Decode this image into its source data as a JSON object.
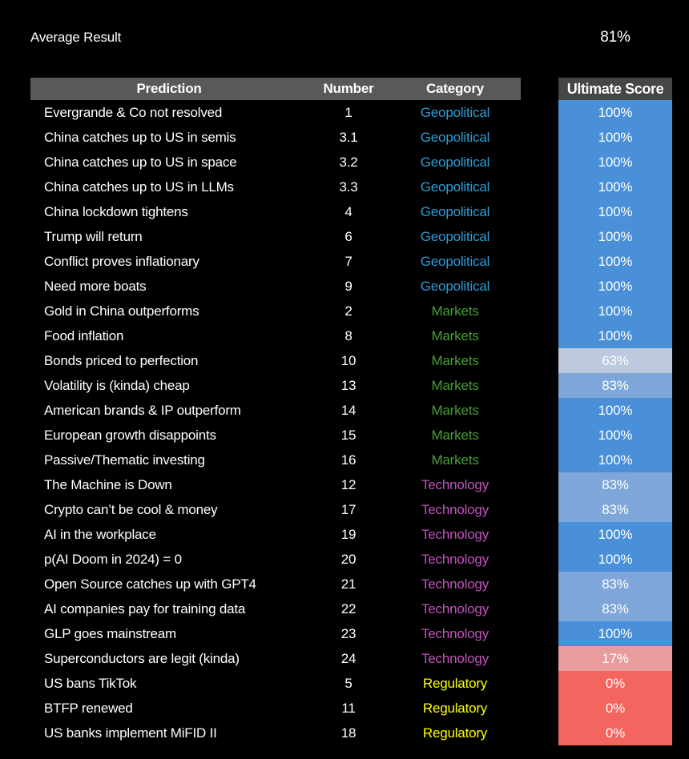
{
  "page": {
    "background": "#000000"
  },
  "topbar": {
    "title": "Average Result",
    "average_score": "81%"
  },
  "table": {
    "headers": {
      "prediction": "Prediction",
      "number": "Number",
      "category": "Category",
      "score": "Ultimate Score"
    },
    "header_bg": "#595959",
    "score_header_bg": "#464646",
    "category_colors": {
      "Geopolitical": "#2E9BD6",
      "Markets": "#45A02F",
      "Technology": "#C351BE",
      "Regulatory": "#FFFF00"
    },
    "score_colors": {
      "100%": "#4A90D8",
      "83%": "#7EA6D9",
      "63%": "#BDC9DE",
      "17%": "#E89C9B",
      "0%": "#F4655F"
    }
  },
  "chart_data": {
    "type": "table",
    "title": "Average Result",
    "average_result": "81%",
    "columns": [
      "Prediction",
      "Number",
      "Category",
      "Ultimate Score"
    ],
    "rows": [
      {
        "prediction": "Evergrande & Co not resolved",
        "number": "1",
        "category": "Geopolitical",
        "score": "100%"
      },
      {
        "prediction": "China catches up to US in semis",
        "number": "3.1",
        "category": "Geopolitical",
        "score": "100%"
      },
      {
        "prediction": "China catches up to US in space",
        "number": "3.2",
        "category": "Geopolitical",
        "score": "100%"
      },
      {
        "prediction": "China catches up to US in LLMs",
        "number": "3.3",
        "category": "Geopolitical",
        "score": "100%"
      },
      {
        "prediction": "China lockdown tightens",
        "number": "4",
        "category": "Geopolitical",
        "score": "100%"
      },
      {
        "prediction": "Trump will return",
        "number": "6",
        "category": "Geopolitical",
        "score": "100%"
      },
      {
        "prediction": "Conflict proves inflationary",
        "number": "7",
        "category": "Geopolitical",
        "score": "100%"
      },
      {
        "prediction": "Need more boats",
        "number": "9",
        "category": "Geopolitical",
        "score": "100%"
      },
      {
        "prediction": "Gold in China outperforms",
        "number": "2",
        "category": "Markets",
        "score": "100%"
      },
      {
        "prediction": "Food inflation",
        "number": "8",
        "category": "Markets",
        "score": "100%"
      },
      {
        "prediction": "Bonds priced to perfection",
        "number": "10",
        "category": "Markets",
        "score": "63%"
      },
      {
        "prediction": "Volatility is (kinda) cheap",
        "number": "13",
        "category": "Markets",
        "score": "83%"
      },
      {
        "prediction": "American brands & IP outperform",
        "number": "14",
        "category": "Markets",
        "score": "100%"
      },
      {
        "prediction": "European growth disappoints",
        "number": "15",
        "category": "Markets",
        "score": "100%"
      },
      {
        "prediction": "Passive/Thematic investing",
        "number": "16",
        "category": "Markets",
        "score": "100%"
      },
      {
        "prediction": "The Machine is Down",
        "number": "12",
        "category": "Technology",
        "score": "83%"
      },
      {
        "prediction": "Crypto can’t be cool & money",
        "number": "17",
        "category": "Technology",
        "score": "83%"
      },
      {
        "prediction": "AI in the workplace",
        "number": "19",
        "category": "Technology",
        "score": "100%"
      },
      {
        "prediction": "p(AI Doom in 2024) = 0",
        "number": "20",
        "category": "Technology",
        "score": "100%"
      },
      {
        "prediction": "Open Source catches up with GPT4",
        "number": "21",
        "category": "Technology",
        "score": "83%"
      },
      {
        "prediction": "AI companies pay for training data",
        "number": "22",
        "category": "Technology",
        "score": "83%"
      },
      {
        "prediction": "GLP goes mainstream",
        "number": "23",
        "category": "Technology",
        "score": "100%"
      },
      {
        "prediction": "Superconductors are legit (kinda)",
        "number": "24",
        "category": "Technology",
        "score": "17%"
      },
      {
        "prediction": "US bans TikTok",
        "number": "5",
        "category": "Regulatory",
        "score": "0%"
      },
      {
        "prediction": "BTFP renewed",
        "number": "11",
        "category": "Regulatory",
        "score": "0%"
      },
      {
        "prediction": "US banks implement MiFID II",
        "number": "18",
        "category": "Regulatory",
        "score": "0%"
      }
    ]
  }
}
